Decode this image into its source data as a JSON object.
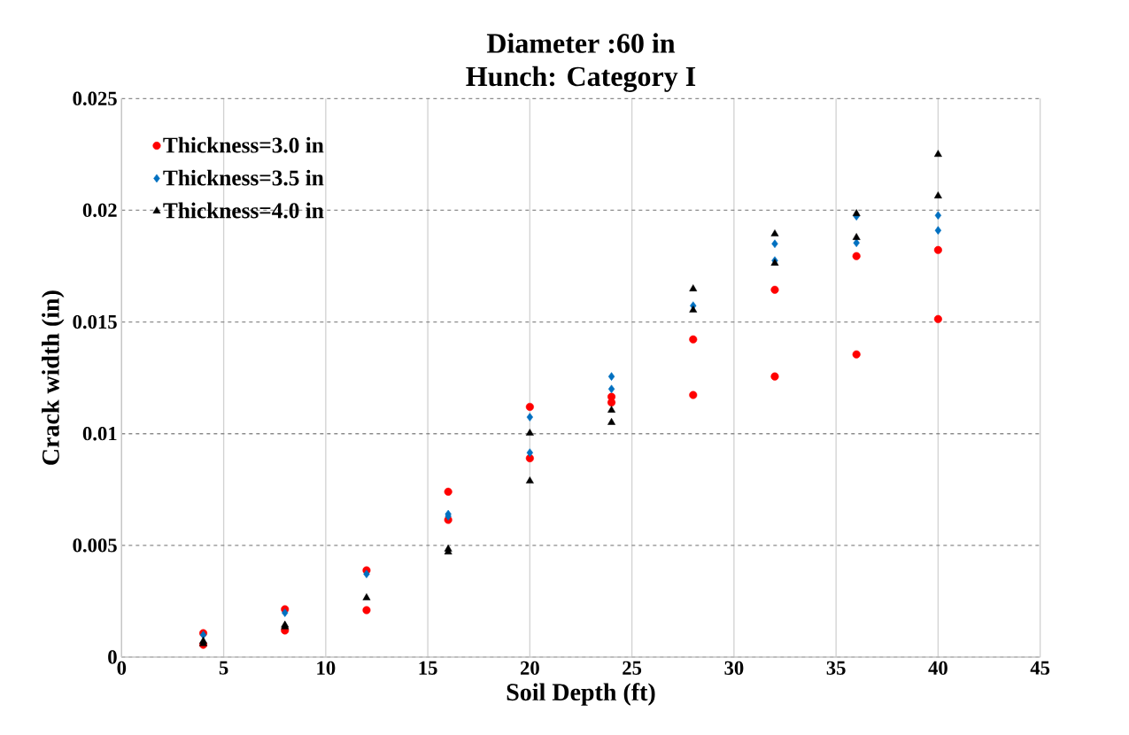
{
  "chart_data": {
    "type": "scatter",
    "title": "Diameter :60 in",
    "subtitle": "Hunch: Category I",
    "xlabel": "Soil Depth (ft)",
    "ylabel": "Crack width (in)",
    "xlim": [
      0,
      45
    ],
    "xticks": [
      0,
      5,
      10,
      15,
      20,
      25,
      30,
      35,
      40,
      45
    ],
    "ylim": [
      0,
      0.025
    ],
    "yticks": [
      0,
      0.005,
      0.01,
      0.015,
      0.02,
      0.025
    ],
    "grid": true,
    "legend": "top left",
    "series": [
      {
        "name": "Thickness=3.0 in",
        "color": "#ff0000",
        "marker": "circle",
        "x": [
          4,
          4,
          8,
          8,
          12,
          12,
          16,
          16,
          20,
          20,
          24,
          24,
          28,
          28,
          32,
          32,
          36,
          36,
          40,
          40
        ],
        "values": [
          0.00107,
          0.00055,
          0.00214,
          0.00119,
          0.00388,
          0.0021,
          0.0074,
          0.00614,
          0.0112,
          0.0089,
          0.01165,
          0.0114,
          0.01422,
          0.01173,
          0.01644,
          0.01256,
          0.01795,
          0.01355,
          0.01822,
          0.01513
        ]
      },
      {
        "name": "Thickness=3.5 in",
        "color": "#0070c0",
        "marker": "diamond",
        "x": [
          4,
          8,
          12,
          16,
          16,
          20,
          20,
          24,
          24,
          28,
          32,
          32,
          36,
          36,
          40,
          40
        ],
        "values": [
          0.00099,
          0.00198,
          0.00372,
          0.0064,
          0.0063,
          0.01074,
          0.00915,
          0.01256,
          0.012,
          0.01573,
          0.0185,
          0.01775,
          0.01973,
          0.01854,
          0.01977,
          0.0191
        ]
      },
      {
        "name": "Thickness=4.0 in",
        "color": "#000000",
        "marker": "triangle",
        "x": [
          4,
          4,
          8,
          8,
          12,
          16,
          16,
          20,
          20,
          24,
          24,
          28,
          28,
          32,
          32,
          36,
          36,
          40,
          40
        ],
        "values": [
          0.00071,
          0.0006,
          0.00143,
          0.00135,
          0.00265,
          0.00483,
          0.0047,
          0.01002,
          0.00788,
          0.01105,
          0.0105,
          0.01648,
          0.01553,
          0.01894,
          0.01763,
          0.01985,
          0.01878,
          0.0225,
          0.02064
        ]
      }
    ]
  }
}
